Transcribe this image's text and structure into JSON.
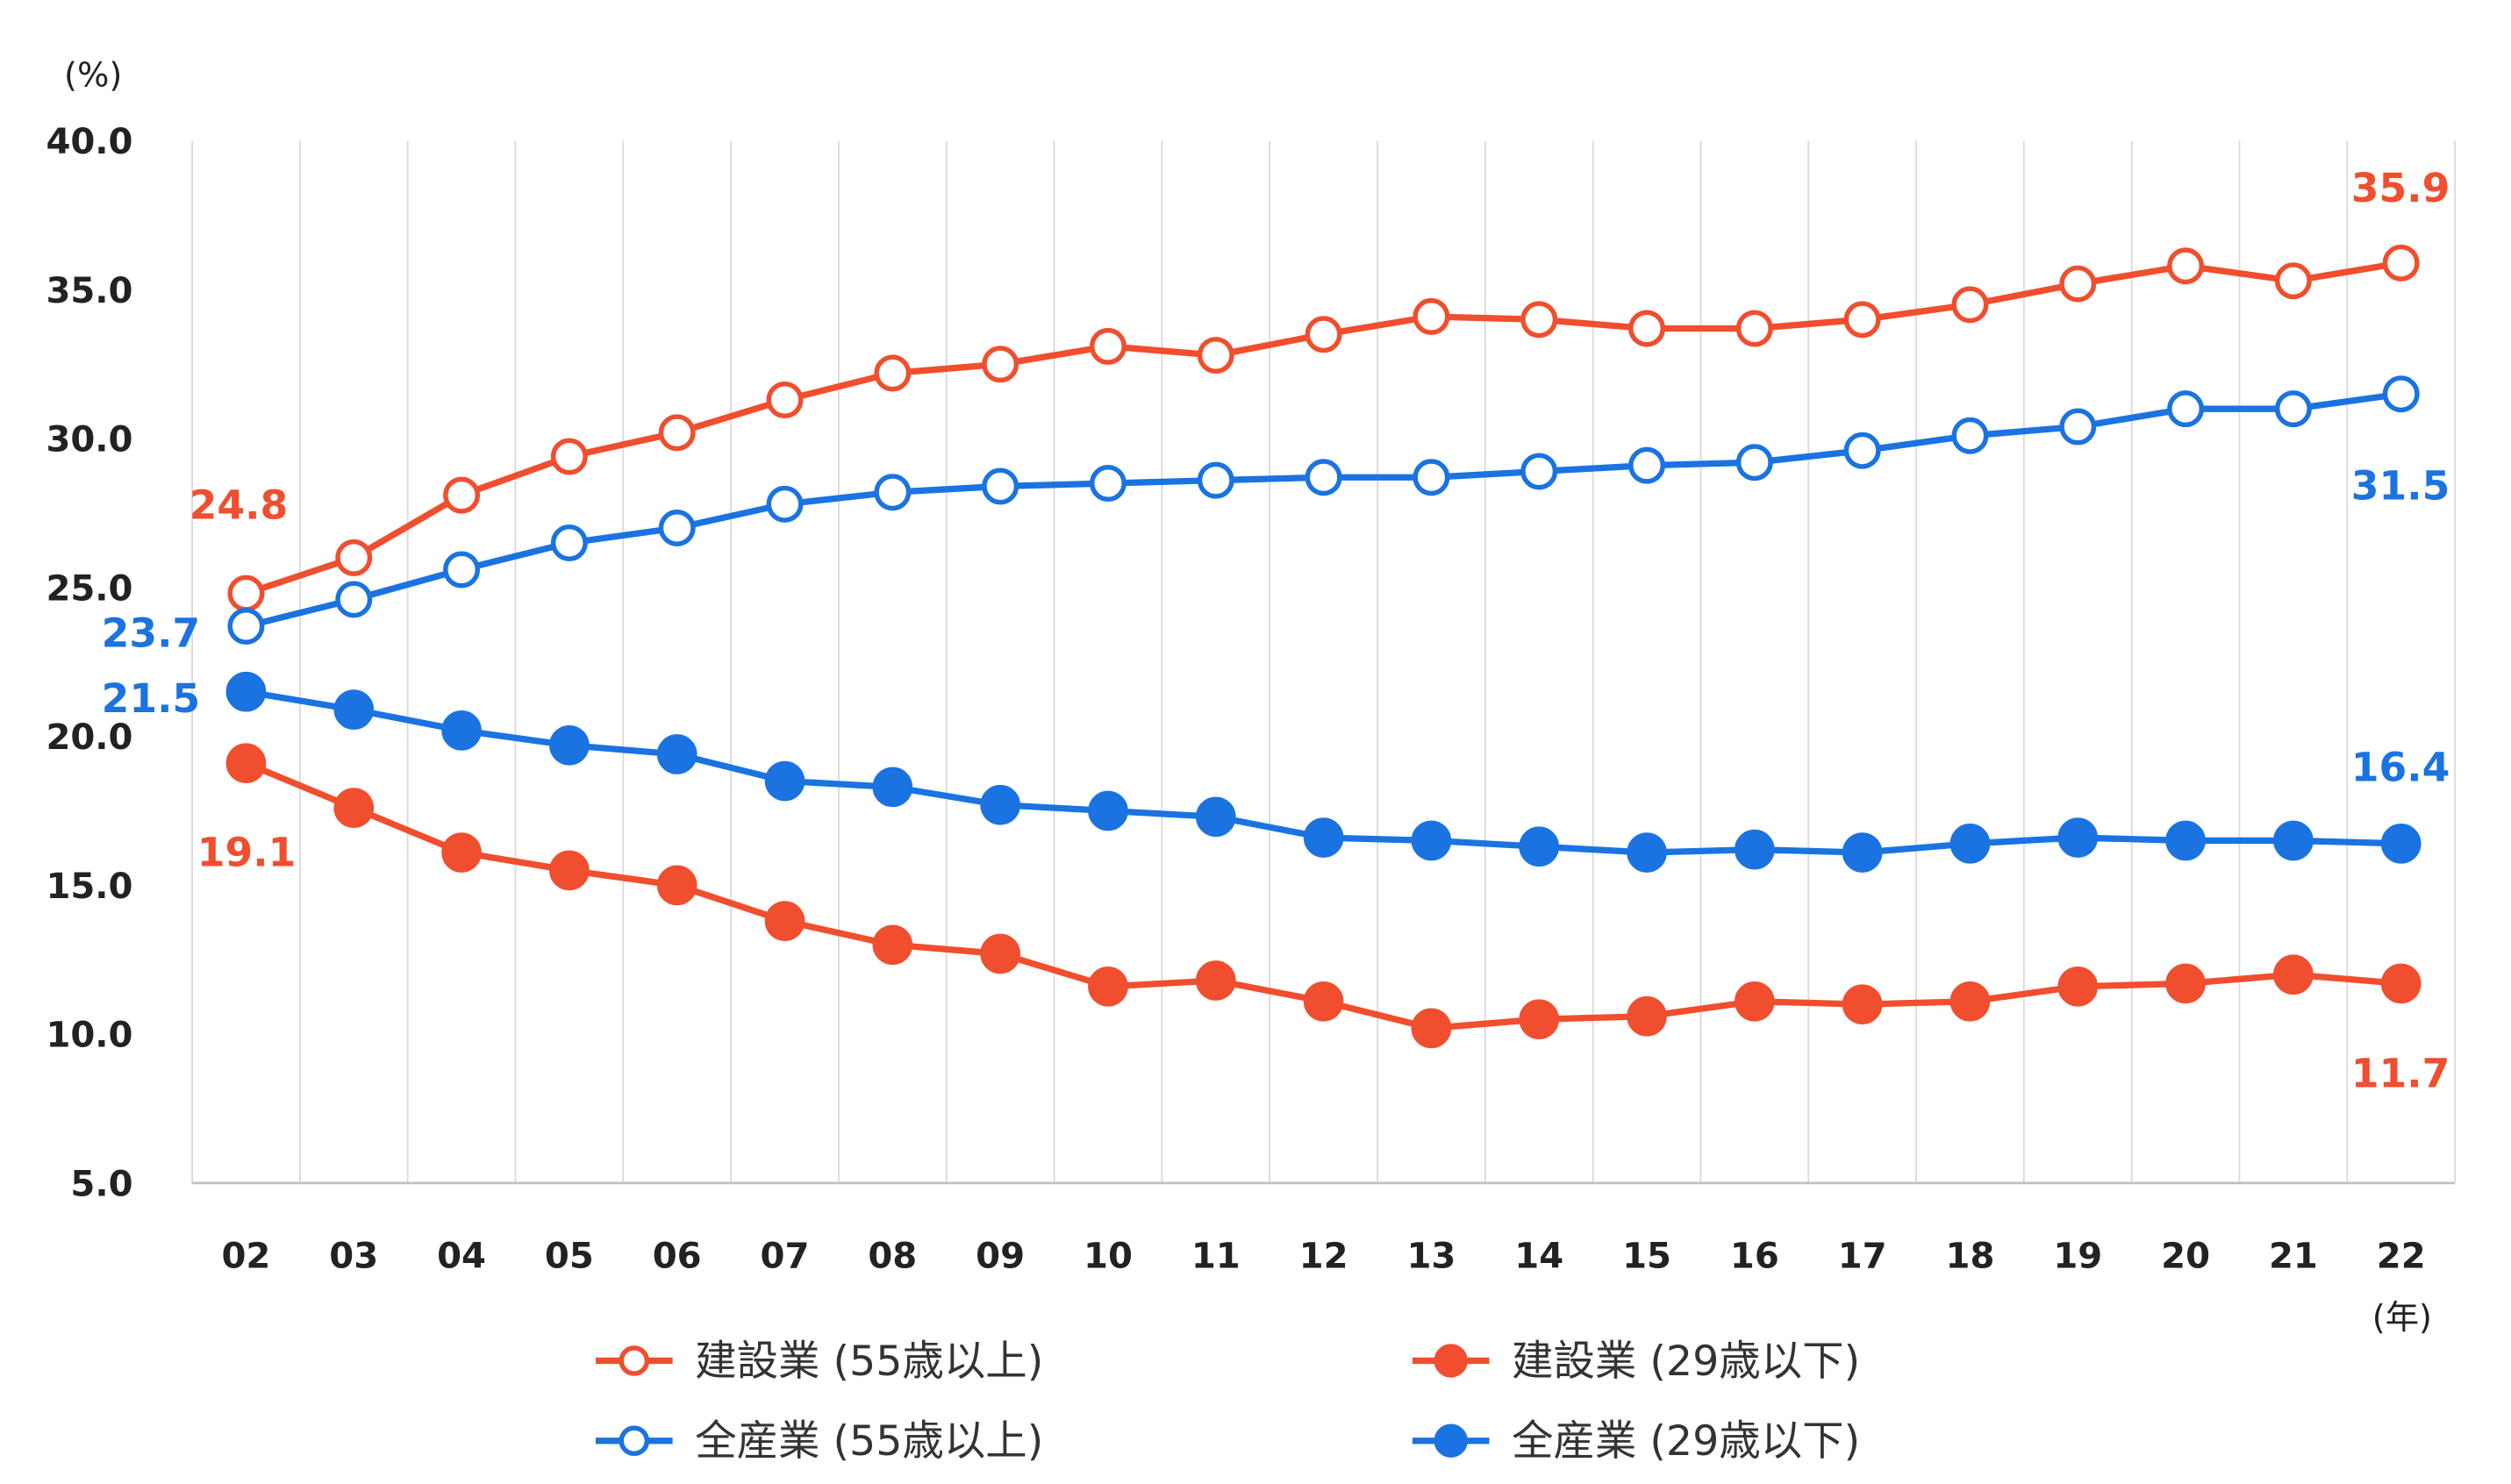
{
  "chart_data": {
    "type": "line",
    "title": "",
    "ylabel": "(%)",
    "xlabel": "(年)",
    "ylim": [
      5.0,
      40.0
    ],
    "yticks": [
      "5.0",
      "10.0",
      "15.0",
      "20.0",
      "25.0",
      "30.0",
      "35.0",
      "40.0"
    ],
    "grid": "vertical",
    "legend": "bottom",
    "categories": [
      "02",
      "03",
      "04",
      "05",
      "06",
      "07",
      "08",
      "09",
      "10",
      "11",
      "12",
      "13",
      "14",
      "15",
      "16",
      "17",
      "18",
      "19",
      "20",
      "21",
      "22"
    ],
    "series": [
      {
        "name": "建設業 (55歳以上)",
        "color": "#f04e2e",
        "marker": "open",
        "values": [
          24.8,
          26.0,
          28.1,
          29.4,
          30.2,
          31.3,
          32.2,
          32.5,
          33.1,
          32.8,
          33.5,
          34.1,
          34.0,
          33.7,
          33.7,
          34.0,
          34.5,
          35.2,
          35.8,
          35.3,
          35.9
        ],
        "labels": {
          "first": "24.8",
          "last": "35.9"
        }
      },
      {
        "name": "建設業 (29歳以下)",
        "color": "#f04e2e",
        "marker": "filled",
        "values": [
          19.1,
          17.6,
          16.1,
          15.5,
          15.0,
          13.8,
          13.0,
          12.7,
          11.6,
          11.8,
          11.1,
          10.2,
          10.5,
          10.6,
          11.1,
          11.0,
          11.1,
          11.6,
          11.7,
          12.0,
          11.7
        ],
        "labels": {
          "first": "19.1",
          "last": "11.7"
        }
      },
      {
        "name": "全産業 (55歳以上)",
        "color": "#1a73e0",
        "marker": "open",
        "values": [
          23.7,
          24.6,
          25.6,
          26.5,
          27.0,
          27.8,
          28.2,
          28.4,
          28.5,
          28.6,
          28.7,
          28.7,
          28.9,
          29.1,
          29.2,
          29.6,
          30.1,
          30.4,
          31.0,
          31.0,
          31.5
        ],
        "labels": {
          "first": "23.7",
          "last": "31.5"
        }
      },
      {
        "name": "全産業 (29歳以下)",
        "color": "#1a73e0",
        "marker": "filled",
        "values": [
          21.5,
          20.9,
          20.2,
          19.7,
          19.4,
          18.5,
          18.3,
          17.7,
          17.5,
          17.3,
          16.6,
          16.5,
          16.3,
          16.1,
          16.2,
          16.1,
          16.4,
          16.6,
          16.5,
          16.5,
          16.4
        ],
        "labels": {
          "first": "21.5",
          "last": "16.4"
        }
      }
    ]
  }
}
